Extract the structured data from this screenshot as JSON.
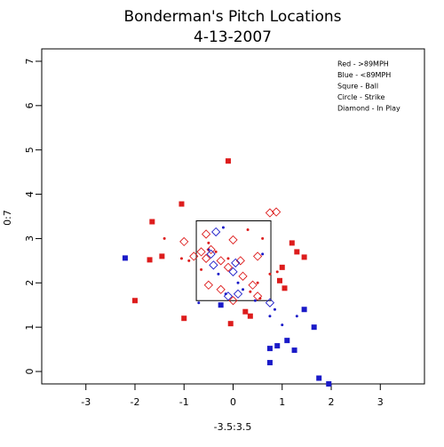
{
  "chart_data": {
    "type": "scatter",
    "title": "Bonderman's Pitch Locations",
    "subtitle": "4-13-2007",
    "x_label": "-3.5:3.5",
    "y_label": "0:7",
    "legend_lines": [
      "Red - >89MPH",
      "Blue - <89MPH",
      "Squre - Ball",
      "Circle - Strike",
      "Diamond - In Play"
    ],
    "xlim": [
      -3.9,
      3.9
    ],
    "ylim": [
      -0.28,
      7.28
    ],
    "xticks": [
      -3,
      -2,
      -1,
      0,
      1,
      2,
      3
    ],
    "yticks": [
      0,
      1,
      2,
      3,
      4,
      5,
      6,
      7
    ],
    "strike_zone": {
      "x": [
        -0.75,
        0.77
      ],
      "y": [
        1.6,
        3.4
      ]
    },
    "series": [
      {
        "color": "#dd1c1c",
        "marker": "square",
        "x": [
          -0.1,
          -1.05,
          -1.65,
          -2.0,
          -1.7,
          -1.45,
          -1.0,
          -0.05,
          0.25,
          0.35,
          1.0,
          1.05,
          1.2,
          1.3,
          1.45,
          0.95
        ],
        "y": [
          4.75,
          3.78,
          3.38,
          1.6,
          2.52,
          2.6,
          1.2,
          1.08,
          1.35,
          1.25,
          2.35,
          1.88,
          2.9,
          2.7,
          2.58,
          2.05
        ]
      },
      {
        "color": "#1a1ac8",
        "marker": "square",
        "x": [
          -2.2,
          -0.25,
          0.75,
          0.75,
          0.9,
          1.1,
          1.25,
          1.45,
          1.65,
          1.75,
          1.95
        ],
        "y": [
          2.56,
          1.5,
          0.52,
          0.2,
          0.58,
          0.7,
          0.48,
          1.4,
          1.0,
          -0.15,
          -0.28
        ]
      },
      {
        "color": "#dd1c1c",
        "marker": "circle",
        "x": [
          -1.4,
          -1.05,
          -0.9,
          -0.5,
          -0.35,
          0.3,
          0.6,
          0.5,
          0.9,
          0.35,
          -0.65,
          -0.1,
          0.75,
          0.55
        ],
        "y": [
          3.0,
          2.55,
          2.5,
          2.9,
          2.7,
          3.2,
          3.0,
          2.0,
          2.25,
          1.8,
          2.3,
          2.55,
          2.2,
          1.65
        ]
      },
      {
        "color": "#1a1ac8",
        "marker": "circle",
        "x": [
          -0.2,
          -0.5,
          -0.3,
          0.1,
          -0.15,
          0.2,
          0.45,
          0.75,
          1.0,
          1.3,
          0.85,
          -0.7,
          0.6
        ],
        "y": [
          3.25,
          2.75,
          2.2,
          2.0,
          1.75,
          1.85,
          1.6,
          1.25,
          1.05,
          1.25,
          1.4,
          1.55,
          2.65
        ]
      },
      {
        "color": "#dd1c1c",
        "marker": "diamond",
        "x": [
          0.75,
          0.88,
          -1.0,
          -0.55,
          -0.65,
          -0.45,
          0.0,
          -0.55,
          -0.25,
          -0.1,
          0.15,
          0.5,
          -0.5,
          -0.25,
          0.0,
          0.2,
          0.4,
          0.5,
          -0.8
        ],
        "y": [
          3.58,
          3.6,
          2.93,
          3.1,
          2.7,
          2.75,
          2.97,
          2.55,
          2.5,
          2.35,
          2.5,
          2.6,
          1.95,
          1.85,
          1.6,
          2.15,
          1.95,
          1.7,
          2.6
        ]
      },
      {
        "color": "#1a1ac8",
        "marker": "diamond",
        "x": [
          -0.35,
          -0.4,
          -0.45,
          0.05,
          0.0,
          0.1,
          -0.1,
          0.75
        ],
        "y": [
          3.15,
          2.4,
          2.65,
          2.45,
          2.25,
          1.75,
          1.7,
          1.55
        ]
      }
    ]
  }
}
